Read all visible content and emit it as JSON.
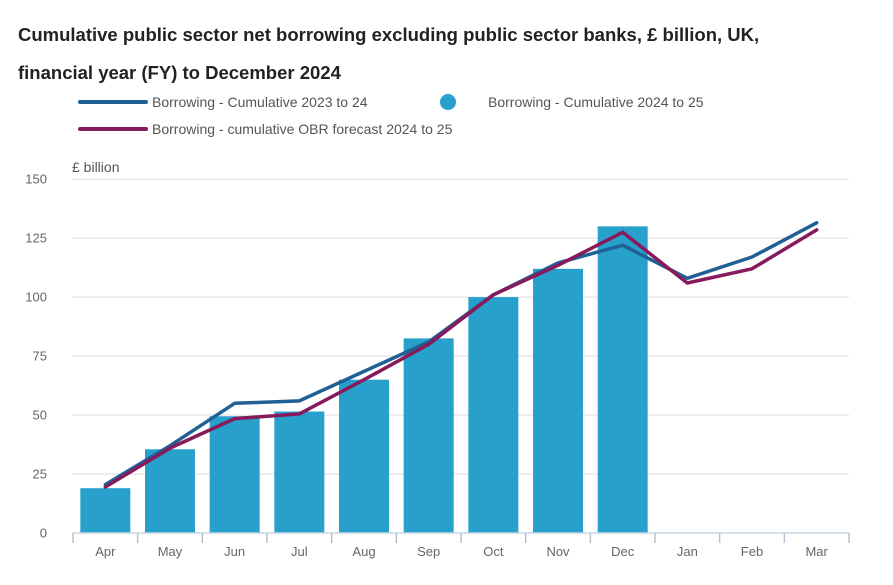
{
  "chart_data": {
    "type": "bar+line",
    "title": "Cumulative public sector net borrowing excluding public sector banks, £ billion, UK, financial year (FY) to December 2024",
    "xlabel": "",
    "ylabel": "£ billion",
    "ylim": [
      0,
      150
    ],
    "yticks": [
      0,
      25,
      50,
      75,
      100,
      125,
      150
    ],
    "grid": true,
    "legend_position": "top",
    "categories": [
      "Apr",
      "May",
      "Jun",
      "Jul",
      "Aug",
      "Sep",
      "Oct",
      "Nov",
      "Dec",
      "Jan",
      "Feb",
      "Mar"
    ],
    "series": [
      {
        "name": "Borrowing - Cumulative 2024 to 25",
        "type": "bar",
        "color": "#27A0CC",
        "values": [
          19,
          35.5,
          49.5,
          51.5,
          65,
          82.5,
          100,
          112,
          130,
          null,
          null,
          null
        ]
      },
      {
        "name": "Borrowing - Cumulative 2023 to 24",
        "type": "line",
        "color": "#206095",
        "values": [
          20.5,
          37,
          55,
          56,
          68.5,
          81,
          101,
          114.5,
          122,
          108,
          117,
          131.5
        ]
      },
      {
        "name": "Borrowing - cumulative OBR forecast 2024 to 25",
        "type": "line",
        "color": "#871A5B",
        "values": [
          19.5,
          36,
          48.5,
          50.5,
          65,
          80,
          101,
          113.5,
          127.5,
          106,
          112,
          128.5
        ]
      }
    ],
    "legend": [
      {
        "label": "Borrowing - Cumulative 2023 to 24",
        "marker": "line",
        "color": "#206095"
      },
      {
        "label": "Borrowing - Cumulative 2024 to 25",
        "marker": "dot",
        "color": "#27A0CC"
      },
      {
        "label": "Borrowing - cumulative OBR forecast 2024 to 25",
        "marker": "line",
        "color": "#871A5B"
      }
    ]
  },
  "colors": {
    "grid_line": "#dcdcdc",
    "axis_line": "#c9d5e0",
    "axis_tick": "#b5c3d1",
    "tick_text": "#666666",
    "title_text": "#222222",
    "legend_text": "#555555"
  }
}
